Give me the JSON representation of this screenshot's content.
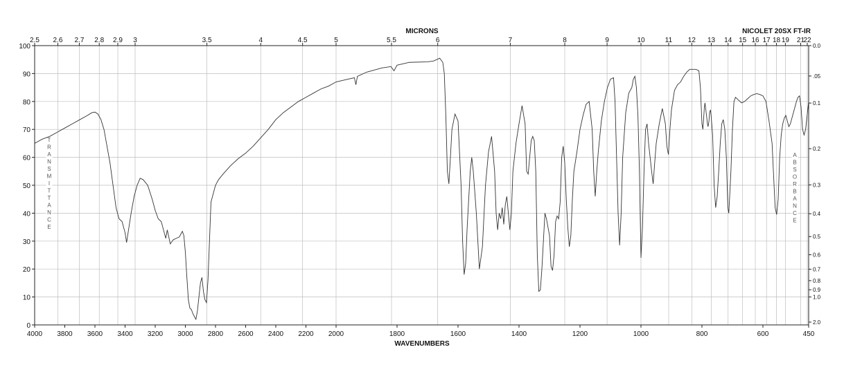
{
  "chart_data": {
    "type": "line",
    "title_top": "MICRONS",
    "instrument": "NICOLET 20SX FT-IR",
    "xlabel": "WAVENUMBERS",
    "ylabel_left": "TRANSMITTANCE",
    "ylabel_right": "ABSORBANCE",
    "grid": true,
    "xlim": [
      4000,
      450
    ],
    "ylim": [
      0,
      100
    ],
    "x_ticks": [
      "4000",
      "3800",
      "3600",
      "3400",
      "3200",
      "3000",
      "2800",
      "2600",
      "2400",
      "2200",
      "2000",
      "1800",
      "1600",
      "1400",
      "1200",
      "1000",
      "800",
      "600",
      "450"
    ],
    "y_ticks": [
      "0",
      "10",
      "20",
      "30",
      "40",
      "50",
      "60",
      "70",
      "80",
      "90",
      "100"
    ],
    "micron_ticks": [
      "2.5",
      "2.6",
      "2.7",
      "2.8",
      "2.9",
      "3",
      "3.5",
      "4",
      "4.5",
      "5",
      "5.5",
      "6",
      "7",
      "8",
      "9",
      "10",
      "11",
      "12",
      "13",
      "14",
      "15",
      "16",
      "17",
      "18",
      "19",
      "21",
      "22"
    ],
    "absorbance_ticks": [
      "0.0",
      ".05",
      "0.1",
      "0.2",
      "0.3",
      "0.4",
      "0.5",
      "0.6",
      "0.7",
      "0.8",
      "0.9",
      "1.0",
      "2.0"
    ],
    "series": [
      {
        "values": [
          [
            4000,
            65
          ],
          [
            3950,
            66.5
          ],
          [
            3900,
            67.5
          ],
          [
            3850,
            69
          ],
          [
            3800,
            70.5
          ],
          [
            3750,
            72
          ],
          [
            3700,
            73.5
          ],
          [
            3650,
            75
          ],
          [
            3620,
            76
          ],
          [
            3600,
            76.2
          ],
          [
            3580,
            75.5
          ],
          [
            3560,
            73.5
          ],
          [
            3540,
            70
          ],
          [
            3520,
            64
          ],
          [
            3500,
            58
          ],
          [
            3480,
            50
          ],
          [
            3460,
            42
          ],
          [
            3440,
            38
          ],
          [
            3420,
            37
          ],
          [
            3400,
            33
          ],
          [
            3390,
            29.5
          ],
          [
            3380,
            33
          ],
          [
            3360,
            40
          ],
          [
            3340,
            46
          ],
          [
            3320,
            50
          ],
          [
            3300,
            52.5
          ],
          [
            3280,
            52
          ],
          [
            3250,
            50
          ],
          [
            3220,
            45
          ],
          [
            3200,
            41
          ],
          [
            3180,
            38
          ],
          [
            3160,
            37
          ],
          [
            3140,
            33
          ],
          [
            3130,
            31
          ],
          [
            3120,
            34
          ],
          [
            3110,
            31.5
          ],
          [
            3100,
            29
          ],
          [
            3080,
            30.5
          ],
          [
            3060,
            31
          ],
          [
            3040,
            31.5
          ],
          [
            3020,
            33.5
          ],
          [
            3010,
            32
          ],
          [
            3000,
            26
          ],
          [
            2990,
            17
          ],
          [
            2980,
            9
          ],
          [
            2970,
            6
          ],
          [
            2960,
            5.5
          ],
          [
            2950,
            4
          ],
          [
            2940,
            3
          ],
          [
            2930,
            2
          ],
          [
            2920,
            5
          ],
          [
            2910,
            10
          ],
          [
            2900,
            15
          ],
          [
            2890,
            17
          ],
          [
            2880,
            12
          ],
          [
            2870,
            9
          ],
          [
            2860,
            8
          ],
          [
            2850,
            16
          ],
          [
            2840,
            30
          ],
          [
            2830,
            44
          ],
          [
            2820,
            46
          ],
          [
            2800,
            50
          ],
          [
            2780,
            52
          ],
          [
            2750,
            54
          ],
          [
            2700,
            57
          ],
          [
            2650,
            59.5
          ],
          [
            2600,
            61.5
          ],
          [
            2550,
            64
          ],
          [
            2500,
            67
          ],
          [
            2450,
            70
          ],
          [
            2400,
            73.5
          ],
          [
            2350,
            76
          ],
          [
            2300,
            78
          ],
          [
            2250,
            80
          ],
          [
            2200,
            81.5
          ],
          [
            2150,
            83
          ],
          [
            2100,
            84.5
          ],
          [
            2050,
            85.5
          ],
          [
            2000,
            87
          ],
          [
            1960,
            88
          ],
          [
            1940,
            88.5
          ],
          [
            1935,
            86
          ],
          [
            1930,
            89
          ],
          [
            1900,
            90.5
          ],
          [
            1850,
            92
          ],
          [
            1820,
            92.5
          ],
          [
            1810,
            91
          ],
          [
            1800,
            93
          ],
          [
            1760,
            94
          ],
          [
            1700,
            94.2
          ],
          [
            1680,
            94.5
          ],
          [
            1660,
            95.5
          ],
          [
            1650,
            94
          ],
          [
            1645,
            90
          ],
          [
            1640,
            75
          ],
          [
            1635,
            55
          ],
          [
            1630,
            50.5
          ],
          [
            1625,
            60
          ],
          [
            1620,
            70
          ],
          [
            1610,
            75.5
          ],
          [
            1600,
            73
          ],
          [
            1590,
            50
          ],
          [
            1585,
            30
          ],
          [
            1580,
            18
          ],
          [
            1575,
            22
          ],
          [
            1570,
            35
          ],
          [
            1565,
            45
          ],
          [
            1560,
            55
          ],
          [
            1555,
            60
          ],
          [
            1550,
            55
          ],
          [
            1540,
            40
          ],
          [
            1530,
            20
          ],
          [
            1520,
            28
          ],
          [
            1510,
            50
          ],
          [
            1500,
            62
          ],
          [
            1490,
            67.5
          ],
          [
            1480,
            55
          ],
          [
            1475,
            40
          ],
          [
            1470,
            34
          ],
          [
            1465,
            40
          ],
          [
            1460,
            38
          ],
          [
            1455,
            42
          ],
          [
            1450,
            36
          ],
          [
            1445,
            43
          ],
          [
            1440,
            46
          ],
          [
            1435,
            40
          ],
          [
            1430,
            34
          ],
          [
            1425,
            40
          ],
          [
            1420,
            55
          ],
          [
            1410,
            65
          ],
          [
            1400,
            72
          ],
          [
            1390,
            78.5
          ],
          [
            1380,
            72
          ],
          [
            1375,
            55
          ],
          [
            1370,
            54
          ],
          [
            1365,
            60
          ],
          [
            1360,
            66
          ],
          [
            1355,
            67.5
          ],
          [
            1350,
            66
          ],
          [
            1345,
            55
          ],
          [
            1340,
            25
          ],
          [
            1335,
            12
          ],
          [
            1330,
            12.5
          ],
          [
            1325,
            20
          ],
          [
            1320,
            30
          ],
          [
            1315,
            40
          ],
          [
            1310,
            38
          ],
          [
            1300,
            32
          ],
          [
            1295,
            21
          ],
          [
            1290,
            19.5
          ],
          [
            1285,
            25
          ],
          [
            1280,
            37
          ],
          [
            1275,
            39
          ],
          [
            1270,
            38
          ],
          [
            1265,
            44
          ],
          [
            1260,
            60
          ],
          [
            1255,
            64
          ],
          [
            1250,
            58
          ],
          [
            1245,
            45
          ],
          [
            1240,
            35
          ],
          [
            1235,
            28
          ],
          [
            1230,
            32
          ],
          [
            1225,
            45
          ],
          [
            1220,
            55
          ],
          [
            1210,
            62
          ],
          [
            1200,
            70
          ],
          [
            1190,
            75
          ],
          [
            1180,
            79
          ],
          [
            1170,
            80
          ],
          [
            1160,
            70
          ],
          [
            1155,
            55
          ],
          [
            1150,
            46
          ],
          [
            1145,
            55
          ],
          [
            1140,
            62
          ],
          [
            1130,
            73
          ],
          [
            1120,
            80
          ],
          [
            1110,
            85
          ],
          [
            1100,
            88
          ],
          [
            1090,
            88.5
          ],
          [
            1085,
            80
          ],
          [
            1080,
            60
          ],
          [
            1075,
            40
          ],
          [
            1070,
            28.5
          ],
          [
            1065,
            40
          ],
          [
            1060,
            60
          ],
          [
            1050,
            76
          ],
          [
            1040,
            83
          ],
          [
            1030,
            85
          ],
          [
            1025,
            88
          ],
          [
            1020,
            89
          ],
          [
            1015,
            85
          ],
          [
            1010,
            75
          ],
          [
            1005,
            55
          ],
          [
            1000,
            24
          ],
          [
            995,
            35
          ],
          [
            990,
            55
          ],
          [
            985,
            70
          ],
          [
            980,
            72
          ],
          [
            975,
            65
          ],
          [
            970,
            60
          ],
          [
            965,
            55
          ],
          [
            960,
            50.5
          ],
          [
            955,
            58
          ],
          [
            950,
            65
          ],
          [
            940,
            72
          ],
          [
            930,
            77.5
          ],
          [
            920,
            72
          ],
          [
            915,
            64
          ],
          [
            910,
            61
          ],
          [
            905,
            70
          ],
          [
            900,
            77
          ],
          [
            890,
            84
          ],
          [
            880,
            86
          ],
          [
            870,
            87
          ],
          [
            860,
            89
          ],
          [
            850,
            90.5
          ],
          [
            840,
            91.5
          ],
          [
            830,
            91.5
          ],
          [
            820,
            91.5
          ],
          [
            810,
            91
          ],
          [
            805,
            85
          ],
          [
            800,
            72
          ],
          [
            797,
            70
          ],
          [
            795,
            73
          ],
          [
            792,
            78
          ],
          [
            790,
            79.5
          ],
          [
            785,
            75
          ],
          [
            782,
            72
          ],
          [
            780,
            71
          ],
          [
            777,
            73
          ],
          [
            775,
            76
          ],
          [
            772,
            77
          ],
          [
            770,
            75
          ],
          [
            765,
            68
          ],
          [
            760,
            50
          ],
          [
            755,
            42
          ],
          [
            750,
            46
          ],
          [
            745,
            55
          ],
          [
            740,
            65
          ],
          [
            735,
            72
          ],
          [
            730,
            73.5
          ],
          [
            725,
            70
          ],
          [
            720,
            60
          ],
          [
            715,
            42
          ],
          [
            712,
            40
          ],
          [
            710,
            44
          ],
          [
            705,
            55
          ],
          [
            700,
            70
          ],
          [
            695,
            80
          ],
          [
            690,
            81.5
          ],
          [
            680,
            80.5
          ],
          [
            670,
            79.5
          ],
          [
            660,
            80
          ],
          [
            650,
            81
          ],
          [
            640,
            82
          ],
          [
            630,
            82.5
          ],
          [
            620,
            82.8
          ],
          [
            610,
            82.5
          ],
          [
            600,
            82
          ],
          [
            590,
            80
          ],
          [
            580,
            73
          ],
          [
            570,
            65
          ],
          [
            560,
            42
          ],
          [
            555,
            39.5
          ],
          [
            550,
            45
          ],
          [
            545,
            60
          ],
          [
            540,
            68
          ],
          [
            535,
            72
          ],
          [
            530,
            74
          ],
          [
            525,
            75
          ],
          [
            520,
            73
          ],
          [
            515,
            71
          ],
          [
            510,
            72
          ],
          [
            505,
            74
          ],
          [
            500,
            76
          ],
          [
            495,
            78
          ],
          [
            490,
            80
          ],
          [
            485,
            81.5
          ],
          [
            480,
            82
          ],
          [
            475,
            78
          ],
          [
            470,
            70
          ],
          [
            465,
            68
          ],
          [
            460,
            70
          ],
          [
            455,
            75
          ],
          [
            450,
            80
          ]
        ]
      }
    ]
  }
}
